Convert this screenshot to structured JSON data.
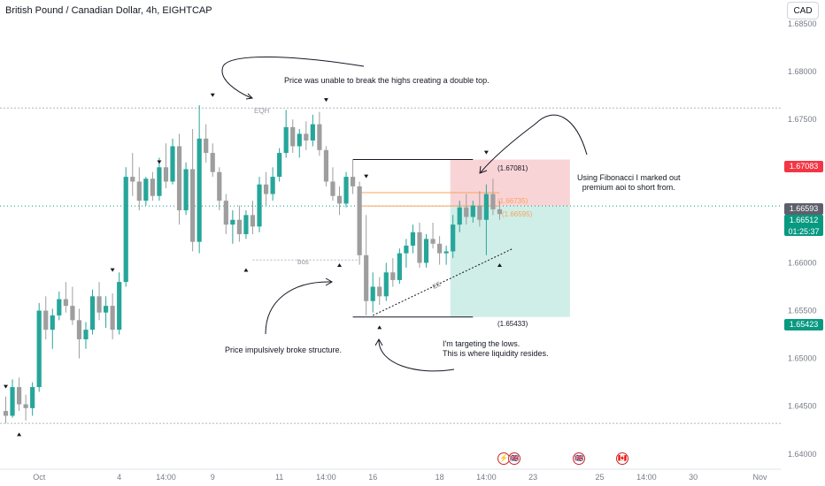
{
  "header": {
    "title": "British Pound / Canadian Dollar, 4h, EIGHTCAP",
    "currency_button": "CAD"
  },
  "price_tags": {
    "stop": {
      "value": "1.67083",
      "color": "#f23645"
    },
    "current": {
      "value": "1.66593",
      "color": "#5d606b"
    },
    "last": {
      "value": "1.66512",
      "countdown": "01:25:37",
      "color": "#089981"
    },
    "target": {
      "value": "1.65423",
      "color": "#089981"
    }
  },
  "annotations": {
    "double_top": "Price was unable to break the highs creating a double top.",
    "eqh": "EQH",
    "bos": "bos",
    "fib_note_1": "Using Fibonacci I marked out",
    "fib_note_2": "premium aoi to short from.",
    "structure": "Price impulsively broke structure.",
    "target_1": "I'm targeting the lows.",
    "target_2": "This is where liquidity resides.",
    "ee": "EE",
    "level_high": "(1.67081)",
    "level_fib1": "(1.66735)",
    "level_fib2": "(1.66595)",
    "level_low": "(1.65433)"
  },
  "events": [
    "⚡",
    "🇬🇧",
    "🇬🇧",
    "🇨🇦"
  ],
  "colors": {
    "up": "#26a69a",
    "down": "#9e9e9e",
    "zone_red": "#f7c5c9",
    "zone_green": "#c8ebe4",
    "fib": "#f7a35c"
  },
  "chart_data": {
    "type": "candlestick",
    "title": "British Pound / Canadian Dollar, 4h, EIGHTCAP",
    "ylim": [
      1.6385,
      1.6875
    ],
    "y_ticks": [
      "1.64000",
      "1.64500",
      "1.65000",
      "1.65500",
      "1.66000",
      "1.66500",
      "1.67000",
      "1.67500",
      "1.68000",
      "1.68500"
    ],
    "x_tick_labels": [
      {
        "label": "Oct",
        "bar": 5
      },
      {
        "label": "4",
        "bar": 17
      },
      {
        "label": "14:00",
        "bar": 24
      },
      {
        "label": "9",
        "bar": 31
      },
      {
        "label": "11",
        "bar": 41
      },
      {
        "label": "14:00",
        "bar": 48
      },
      {
        "label": "16",
        "bar": 55
      },
      {
        "label": "18",
        "bar": 65
      },
      {
        "label": "14:00",
        "bar": 72
      },
      {
        "label": "23",
        "bar": 79
      },
      {
        "label": "25",
        "bar": 89
      },
      {
        "label": "14:00",
        "bar": 96
      },
      {
        "label": "30",
        "bar": 103
      },
      {
        "label": "Nov",
        "bar": 113
      }
    ],
    "ohlc": [
      [
        1.6445,
        1.646,
        1.6432,
        1.644
      ],
      [
        1.644,
        1.6478,
        1.6438,
        1.647
      ],
      [
        1.647,
        1.648,
        1.6445,
        1.6452
      ],
      [
        1.6452,
        1.6462,
        1.6435,
        1.6448
      ],
      [
        1.6448,
        1.6475,
        1.644,
        1.647
      ],
      [
        1.647,
        1.6558,
        1.6465,
        1.655
      ],
      [
        1.655,
        1.6565,
        1.652,
        1.653
      ],
      [
        1.653,
        1.6552,
        1.651,
        1.6545
      ],
      [
        1.6545,
        1.657,
        1.654,
        1.6562
      ],
      [
        1.6562,
        1.658,
        1.6548,
        1.6555
      ],
      [
        1.6555,
        1.6575,
        1.6535,
        1.654
      ],
      [
        1.654,
        1.6552,
        1.65,
        1.652
      ],
      [
        1.652,
        1.6538,
        1.651,
        1.653
      ],
      [
        1.653,
        1.6572,
        1.6525,
        1.6565
      ],
      [
        1.6565,
        1.658,
        1.654,
        1.6548
      ],
      [
        1.6548,
        1.6565,
        1.6532,
        1.6555
      ],
      [
        1.6555,
        1.6568,
        1.652,
        1.653
      ],
      [
        1.653,
        1.659,
        1.6525,
        1.658
      ],
      [
        1.658,
        1.67,
        1.6575,
        1.669
      ],
      [
        1.669,
        1.6715,
        1.667,
        1.6685
      ],
      [
        1.6685,
        1.67,
        1.6655,
        1.6665
      ],
      [
        1.6665,
        1.669,
        1.666,
        1.6688
      ],
      [
        1.6688,
        1.6695,
        1.6665,
        1.667
      ],
      [
        1.667,
        1.671,
        1.6665,
        1.67
      ],
      [
        1.67,
        1.6725,
        1.6678,
        1.6685
      ],
      [
        1.6685,
        1.673,
        1.6682,
        1.6722
      ],
      [
        1.6722,
        1.6735,
        1.664,
        1.6655
      ],
      [
        1.6655,
        1.6705,
        1.665,
        1.6698
      ],
      [
        1.6698,
        1.674,
        1.6612,
        1.6622
      ],
      [
        1.6622,
        1.6765,
        1.661,
        1.673
      ],
      [
        1.673,
        1.6745,
        1.6705,
        1.6715
      ],
      [
        1.6715,
        1.6725,
        1.669,
        1.6695
      ],
      [
        1.6695,
        1.67,
        1.6655,
        1.6665
      ],
      [
        1.6665,
        1.6672,
        1.663,
        1.664
      ],
      [
        1.664,
        1.6655,
        1.662,
        1.6645
      ],
      [
        1.6645,
        1.666,
        1.6622,
        1.663
      ],
      [
        1.663,
        1.6655,
        1.6625,
        1.665
      ],
      [
        1.665,
        1.6665,
        1.663,
        1.6638
      ],
      [
        1.6638,
        1.669,
        1.6632,
        1.6682
      ],
      [
        1.6682,
        1.6695,
        1.666,
        1.6672
      ],
      [
        1.6672,
        1.67,
        1.6665,
        1.669
      ],
      [
        1.669,
        1.672,
        1.6685,
        1.6715
      ],
      [
        1.6715,
        1.676,
        1.671,
        1.6742
      ],
      [
        1.6742,
        1.675,
        1.6715,
        1.6722
      ],
      [
        1.6722,
        1.674,
        1.671,
        1.6735
      ],
      [
        1.6735,
        1.6748,
        1.6718,
        1.6728
      ],
      [
        1.6728,
        1.6755,
        1.6722,
        1.6745
      ],
      [
        1.6745,
        1.6758,
        1.6712,
        1.6718
      ],
      [
        1.6718,
        1.6722,
        1.668,
        1.6685
      ],
      [
        1.6685,
        1.67,
        1.6665,
        1.667
      ],
      [
        1.667,
        1.668,
        1.665,
        1.6662
      ],
      [
        1.6662,
        1.6695,
        1.6658,
        1.669
      ],
      [
        1.669,
        1.6708,
        1.6672,
        1.668
      ],
      [
        1.668,
        1.6685,
        1.6598,
        1.6608
      ],
      [
        1.6608,
        1.665,
        1.6545,
        1.656
      ],
      [
        1.656,
        1.659,
        1.6548,
        1.6575
      ],
      [
        1.6575,
        1.6585,
        1.6556,
        1.6565
      ],
      [
        1.6565,
        1.66,
        1.656,
        1.659
      ],
      [
        1.659,
        1.6605,
        1.6575,
        1.6582
      ],
      [
        1.6582,
        1.6615,
        1.6578,
        1.661
      ],
      [
        1.661,
        1.6625,
        1.6595,
        1.6618
      ],
      [
        1.6618,
        1.664,
        1.661,
        1.6632
      ],
      [
        1.6632,
        1.6642,
        1.6595,
        1.66
      ],
      [
        1.66,
        1.663,
        1.6595,
        1.6625
      ],
      [
        1.6625,
        1.6642,
        1.6615,
        1.662
      ],
      [
        1.662,
        1.6628,
        1.6598,
        1.661
      ],
      [
        1.661,
        1.6618,
        1.6598,
        1.6612
      ],
      [
        1.6612,
        1.665,
        1.6605,
        1.664
      ],
      [
        1.664,
        1.6665,
        1.6632,
        1.6658
      ],
      [
        1.6658,
        1.6672,
        1.664,
        1.6648
      ],
      [
        1.6648,
        1.6665,
        1.6642,
        1.666
      ],
      [
        1.666,
        1.6675,
        1.6638,
        1.6645
      ],
      [
        1.6645,
        1.6682,
        1.6608,
        1.6672
      ],
      [
        1.6672,
        1.6688,
        1.665,
        1.6656
      ],
      [
        1.6656,
        1.6665,
        1.6645,
        1.6651
      ]
    ],
    "arrows": {
      "up": [
        [
          2,
          1.6428
        ],
        [
          36,
          1.66
        ],
        [
          50,
          1.6605
        ],
        [
          56,
          1.654
        ],
        [
          74,
          1.6605
        ]
      ],
      "down": [
        [
          0,
          1.6463
        ],
        [
          16,
          1.6585
        ],
        [
          23,
          1.6698
        ],
        [
          31,
          1.6768
        ],
        [
          48,
          1.6763
        ],
        [
          54,
          1.6683
        ],
        [
          72,
          1.6708
        ]
      ]
    },
    "levels": {
      "eqh": 1.6762,
      "bos": 1.6603,
      "low": 1.6432
    },
    "trade": {
      "entry": 1.66595,
      "stop": 1.67081,
      "target": 1.65433,
      "fib1": 1.66735,
      "fib2": 1.66595
    }
  }
}
